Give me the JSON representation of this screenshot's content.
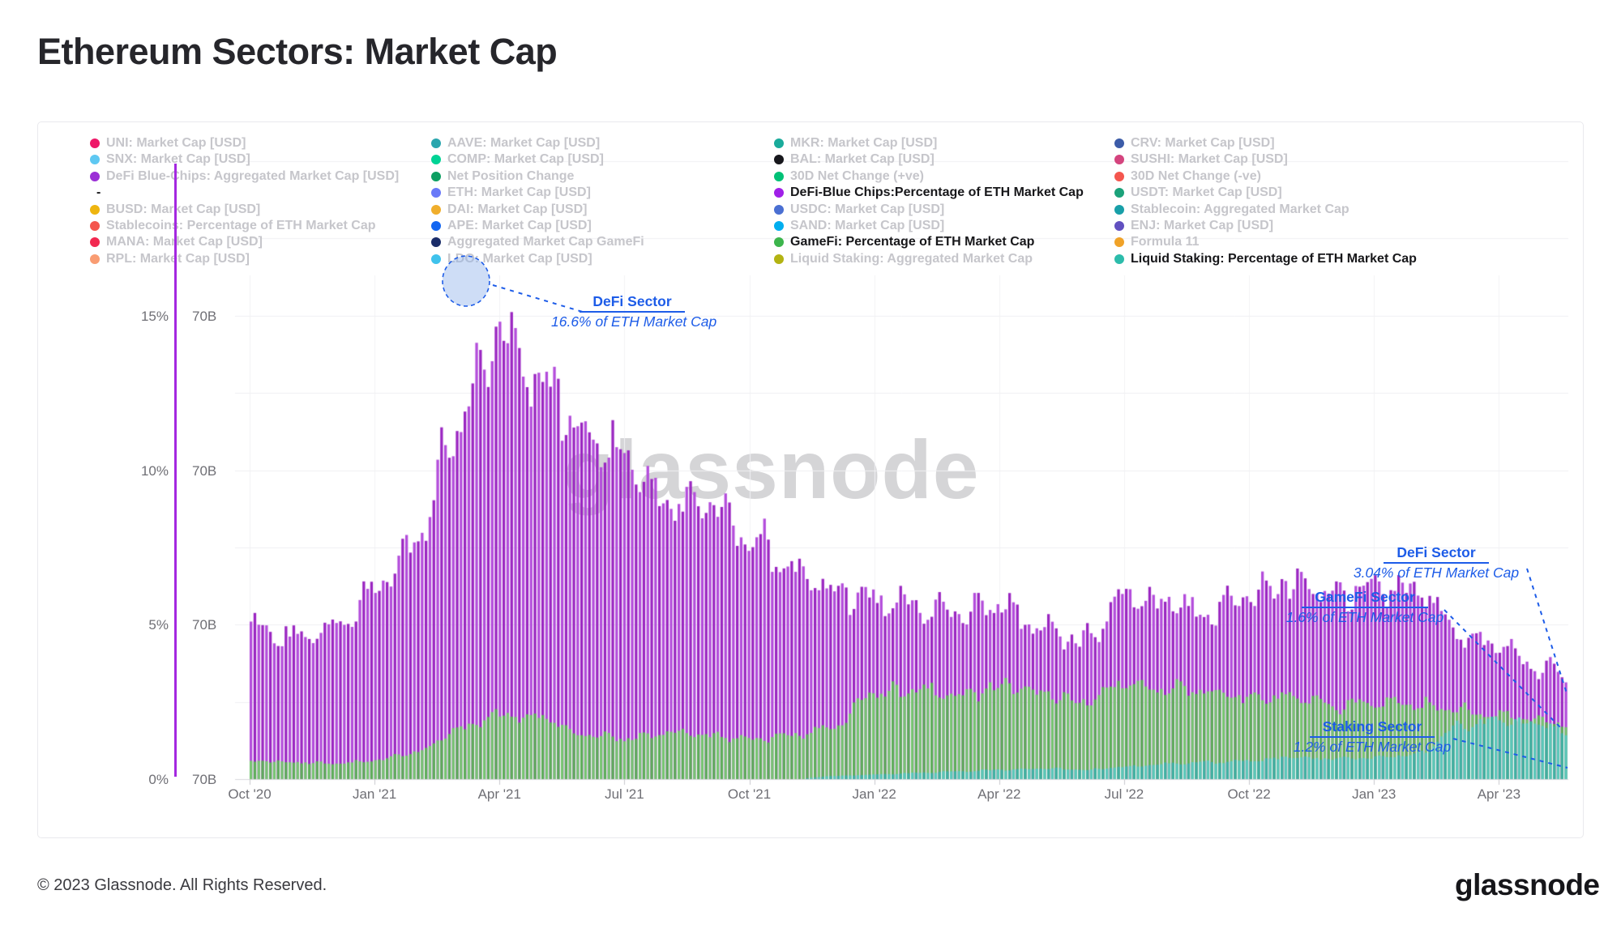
{
  "title": "Ethereum Sectors: Market Cap",
  "watermark": "glassnode",
  "footer": {
    "copyright": "© 2023 Glassnode. All Rights Reserved.",
    "brand": "glassnode"
  },
  "colors": {
    "annotation_blue": "#1d5ce8",
    "defi_fill": "#b34cdb",
    "defi_stripe": "#9a25c1",
    "gamefi_fill": "#76c470",
    "gamefi_stripe": "#5dad59",
    "staking_fill": "#5ac7b9",
    "staking_stripe": "#3fb0a2",
    "gridline": "#efeff2",
    "axis_line": "#d8d8dd",
    "watermark_gray": "#d5d5d7",
    "legend_inactive": "#c6c6cb",
    "legend_active": "#17171a"
  },
  "legend": {
    "columns": [
      {
        "items": [
          {
            "label": "UNI: Market Cap [USD]",
            "color": "#ee1868",
            "active": false
          },
          {
            "label": "SNX: Market Cap [USD]",
            "color": "#5ec8f2",
            "active": false
          },
          {
            "label": "DeFi Blue-Chips: Aggregated Market Cap [USD]",
            "color": "#9b2fd6",
            "active": false
          },
          {
            "label": "-",
            "color": "",
            "active": true
          },
          {
            "label": "BUSD: Market Cap [USD]",
            "color": "#eeb50f",
            "active": false
          },
          {
            "label": "Stablecoins: Percentage of ETH Market Cap",
            "color": "#f4564e",
            "active": false
          },
          {
            "label": "MANA: Market Cap [USD]",
            "color": "#f22950",
            "active": false
          },
          {
            "label": "RPL: Market Cap [USD]",
            "color": "#f99c72",
            "active": false
          }
        ]
      },
      {
        "items": [
          {
            "label": "AAVE: Market Cap [USD]",
            "color": "#2aa6ae",
            "active": false
          },
          {
            "label": "COMP: Market Cap [USD]",
            "color": "#00d395",
            "active": false
          },
          {
            "label": "Net Position Change",
            "color": "#0d9f62",
            "active": false
          },
          {
            "label": "ETH: Market Cap [USD]",
            "color": "#6979f8",
            "active": false
          },
          {
            "label": "DAI: Market Cap [USD]",
            "color": "#f0ae2c",
            "active": false
          },
          {
            "label": "APE: Market Cap [USD]",
            "color": "#1266f1",
            "active": false
          },
          {
            "label": "Aggregated Market Cap GameFi",
            "color": "#1b2d69",
            "active": false
          },
          {
            "label": "LDO: Market Cap [USD]",
            "color": "#3fc2ec",
            "active": false
          }
        ]
      },
      {
        "items": [
          {
            "label": "MKR: Market Cap [USD]",
            "color": "#1aab9b",
            "active": false
          },
          {
            "label": "BAL: Market Cap [USD]",
            "color": "#17171c",
            "active": false
          },
          {
            "label": "30D Net Change (+ve)",
            "color": "#00c176",
            "active": false
          },
          {
            "label": "DeFi-Blue Chips:Percentage of ETH Market Cap",
            "color": "#a020e8",
            "active": true
          },
          {
            "label": "USDC: Market Cap [USD]",
            "color": "#4a6fd2",
            "active": false
          },
          {
            "label": "SAND: Market Cap [USD]",
            "color": "#00aeef",
            "active": false
          },
          {
            "label": "GameFi: Percentage of ETH Market Cap",
            "color": "#3cb54c",
            "active": true
          },
          {
            "label": "Liquid Staking: Aggregated Market Cap",
            "color": "#b3b312",
            "active": false
          }
        ]
      },
      {
        "items": [
          {
            "label": "CRV: Market Cap [USD]",
            "color": "#3c5ca8",
            "active": false
          },
          {
            "label": "SUSHI: Market Cap [USD]",
            "color": "#d4447e",
            "active": false
          },
          {
            "label": "30D Net Change (-ve)",
            "color": "#f4564e",
            "active": false
          },
          {
            "label": "USDT: Market Cap [USD]",
            "color": "#1ba27a",
            "active": false
          },
          {
            "label": "Stablecoin: Aggregated Market Cap",
            "color": "#189fa8",
            "active": false
          },
          {
            "label": "ENJ: Market Cap [USD]",
            "color": "#6150c0",
            "active": false
          },
          {
            "label": "Formula 11",
            "color": "#f0a228",
            "active": false
          },
          {
            "label": "Liquid Staking: Percentage of ETH Market Cap",
            "color": "#2cbcab",
            "active": true
          }
        ]
      }
    ]
  },
  "annotations": [
    {
      "id": "defi-peak",
      "title": "DeFi Sector",
      "value": "16.6% of ETH Market Cap"
    },
    {
      "id": "defi-end",
      "title": "DeFi Sector",
      "value": "3.04% of ETH Market Cap"
    },
    {
      "id": "gamefi-end",
      "title": "GameFi Sector",
      "value": "1.6% of ETH Market Cap"
    },
    {
      "id": "staking-end",
      "title": "Staking Sector",
      "value": "1.2% of ETH Market Cap"
    }
  ],
  "chart_data": {
    "type": "area",
    "title": "Ethereum Sectors: Market Cap",
    "x_unit": "month",
    "x": [
      "Oct '20",
      "Nov '20",
      "Dec '20",
      "Jan '21",
      "Feb '21",
      "Mar '21",
      "Apr '21",
      "May '21",
      "Jun '21",
      "Jul '21",
      "Aug '21",
      "Sep '21",
      "Oct '21",
      "Nov '21",
      "Dec '21",
      "Jan '22",
      "Feb '22",
      "Mar '22",
      "Apr '22",
      "May '22",
      "Jun '22",
      "Jul '22",
      "Aug '22",
      "Sep '22",
      "Oct '22",
      "Nov '22",
      "Dec '22",
      "Jan '23",
      "Feb '23",
      "Mar '23",
      "Apr '23",
      "May '23",
      "Jun '23"
    ],
    "series": [
      {
        "name": "DeFi-Blue Chips:Percentage of ETH Market Cap",
        "color": "#b34cdb",
        "values": [
          5.0,
          4.6,
          4.9,
          6.1,
          7.8,
          11.5,
          14.3,
          13.0,
          11.3,
          10.3,
          9.0,
          8.9,
          7.7,
          6.9,
          6.2,
          5.8,
          5.6,
          5.4,
          5.6,
          4.8,
          4.5,
          5.9,
          5.7,
          5.4,
          6.0,
          6.4,
          6.0,
          6.3,
          6.1,
          4.8,
          4.3,
          3.6,
          3.0
        ]
      },
      {
        "name": "GameFi: Percentage of ETH Market Cap",
        "color": "#76c470",
        "values": [
          0.6,
          0.55,
          0.5,
          0.6,
          0.9,
          1.6,
          2.1,
          2.0,
          1.45,
          1.3,
          1.5,
          1.4,
          1.3,
          1.4,
          1.7,
          2.8,
          2.9,
          2.7,
          3.0,
          2.8,
          2.5,
          3.1,
          2.9,
          2.8,
          2.6,
          2.7,
          2.4,
          2.5,
          2.4,
          2.2,
          2.1,
          1.9,
          1.6
        ]
      },
      {
        "name": "Liquid Staking: Percentage of ETH Market Cap",
        "color": "#5ac7b9",
        "values": [
          0,
          0,
          0,
          0,
          0,
          0,
          0,
          0,
          0,
          0,
          0,
          0,
          0,
          0,
          0.1,
          0.15,
          0.2,
          0.25,
          0.3,
          0.35,
          0.3,
          0.4,
          0.5,
          0.55,
          0.6,
          0.7,
          0.65,
          0.7,
          0.8,
          1.7,
          1.9,
          1.8,
          1.25
        ]
      }
    ],
    "spikes": [
      {
        "series_index": 0,
        "month_index": 5.85,
        "value": 16.6
      },
      {
        "series_index": 0,
        "month_index": 6.5,
        "value": 15.2
      }
    ],
    "end_values": {
      "defi": 3.04,
      "gamefi": 1.6,
      "staking": 1.2
    },
    "y_ticks_left_pct": [
      "0%",
      "5%",
      "10%",
      "15%"
    ],
    "y_ticks_right": [
      "70B",
      "70B",
      "70B",
      "70B"
    ],
    "x_ticks": [
      "Oct '20",
      "Jan '21",
      "Apr '21",
      "Jul '21",
      "Oct '21",
      "Jan '22",
      "Apr '22",
      "Jul '22",
      "Oct '22",
      "Jan '23",
      "Apr '23"
    ],
    "ylim": [
      0,
      21
    ],
    "grid": true,
    "legend_position": "top",
    "overlap_mode": "overlaid-not-stacked"
  }
}
